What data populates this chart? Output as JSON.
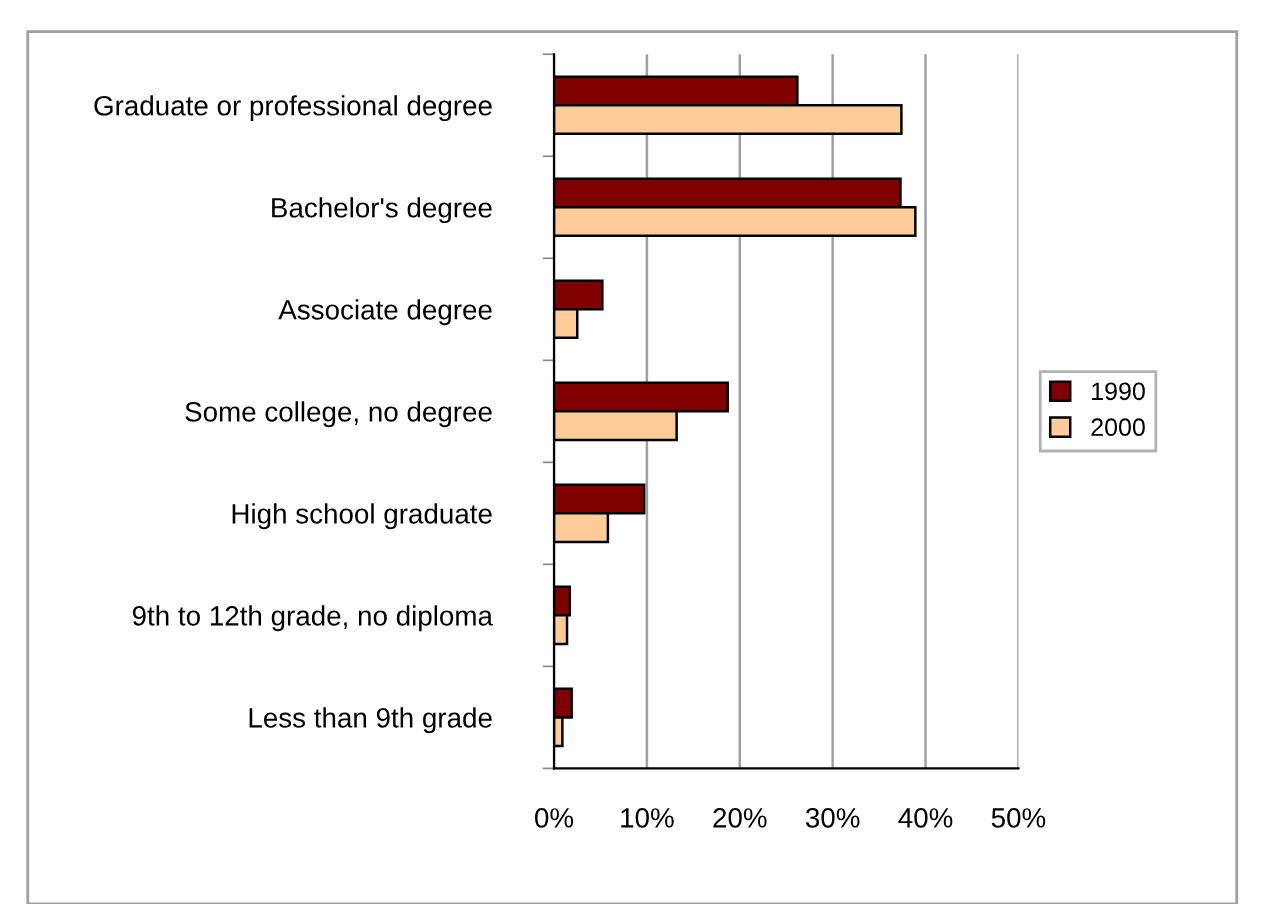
{
  "chart_data": {
    "type": "bar",
    "orientation": "horizontal",
    "categories": [
      "Graduate or professional degree",
      "Bachelor's degree",
      "Associate degree",
      "Some college, no degree",
      "High school graduate",
      "9th to 12th grade, no diploma",
      "Less than 9th grade"
    ],
    "series": [
      {
        "name": "1990",
        "color": "#800000",
        "values": [
          26.2,
          37.3,
          5.2,
          18.7,
          9.7,
          1.7,
          1.9
        ]
      },
      {
        "name": "2000",
        "color": "#ffcc99",
        "values": [
          37.4,
          38.9,
          2.5,
          13.2,
          5.8,
          1.4,
          0.9
        ]
      }
    ],
    "xlim": [
      0,
      50
    ],
    "xticks": [
      {
        "value": 0,
        "label": "0%"
      },
      {
        "value": 10,
        "label": "10%"
      },
      {
        "value": 20,
        "label": "20%"
      },
      {
        "value": 30,
        "label": "30%"
      },
      {
        "value": 40,
        "label": "40%"
      },
      {
        "value": 50,
        "label": "50%"
      }
    ],
    "grid": "x",
    "legend": "right"
  }
}
